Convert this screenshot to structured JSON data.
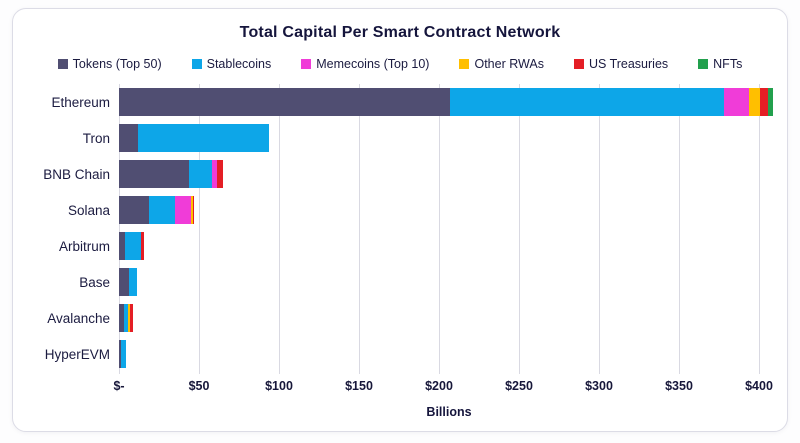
{
  "chart_data": {
    "type": "bar",
    "orientation": "horizontal",
    "stacked": true,
    "title": "Total Capital Per Smart Contract Network",
    "xlabel": "Billions",
    "categories": [
      "Ethereum",
      "Tron",
      "BNB Chain",
      "Solana",
      "Arbitrum",
      "Base",
      "Avalanche",
      "HyperEVM"
    ],
    "series": [
      {
        "name": "Tokens (Top 50)",
        "color": "#504E72",
        "values": [
          207,
          12,
          43.5,
          19,
          3.5,
          6.5,
          3,
          1.5
        ]
      },
      {
        "name": "Stablecoins",
        "color": "#0DA6E8",
        "values": [
          171,
          82,
          14.5,
          16,
          10.5,
          5,
          2.5,
          3.0
        ]
      },
      {
        "name": "Memecoins (Top 10)",
        "color": "#F03CD8",
        "values": [
          15.5,
          0,
          3,
          10,
          0,
          0,
          0,
          0
        ]
      },
      {
        "name": "Other RWAs",
        "color": "#FFBF00",
        "values": [
          7,
          0,
          0,
          1,
          0,
          0,
          1.5,
          0
        ]
      },
      {
        "name": "US Treasuries",
        "color": "#E41E25",
        "values": [
          5,
          0,
          4,
          1,
          1.5,
          0,
          1.5,
          0
        ]
      },
      {
        "name": "NFTs",
        "color": "#22A04D",
        "values": [
          3,
          0,
          0,
          0,
          0,
          0,
          0,
          0
        ]
      }
    ],
    "x_ticks": [
      "$-",
      "$50",
      "$100",
      "$150",
      "$200",
      "$250",
      "$300",
      "$350",
      "$400"
    ],
    "tick_interval_billions": 50,
    "x_max_billions": 412.5,
    "grid": true,
    "legend_position": "top",
    "totals_billions": [
      408.5,
      94,
      65,
      47,
      15.5,
      11.5,
      8.5,
      4.5
    ]
  }
}
